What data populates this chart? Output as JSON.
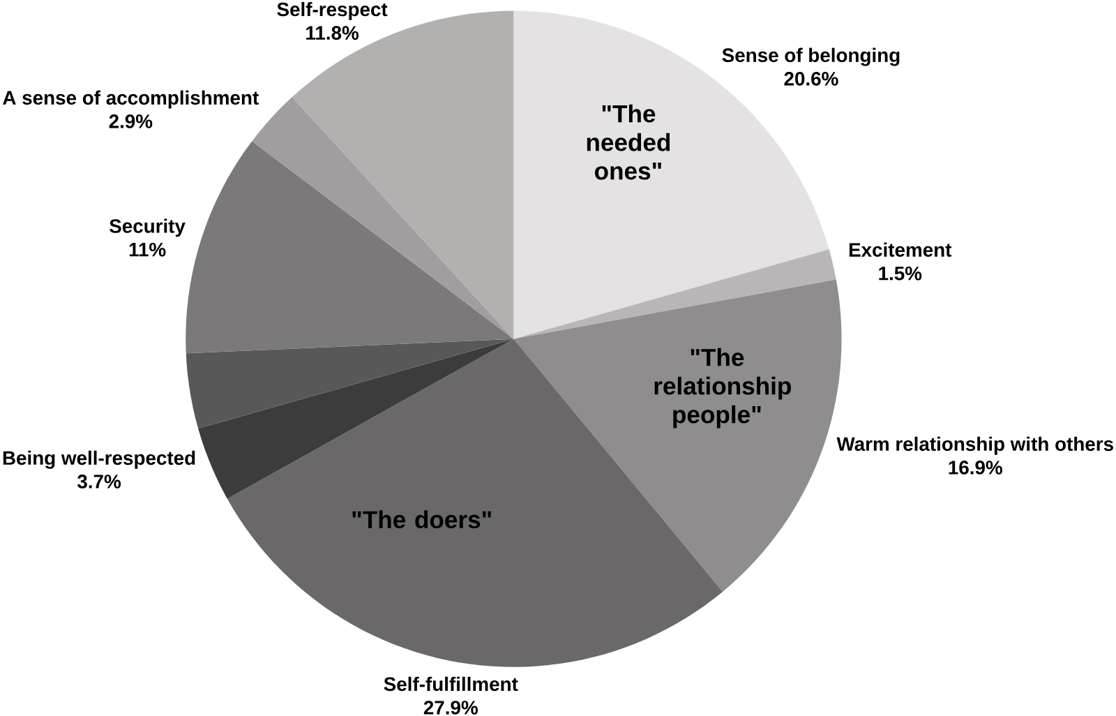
{
  "chart_data": {
    "type": "pie",
    "categories": [
      "Sense of belonging",
      "Excitement",
      "Warm relationship with others",
      "Self-fulfillment",
      "Being well-respected",
      null,
      "Security",
      "A sense of accomplishment",
      "Self-respect"
    ],
    "values": [
      20.6,
      1.5,
      16.9,
      27.9,
      3.7,
      3.7,
      11,
      2.9,
      11.8
    ],
    "value_labels": [
      "20.6%",
      "1.5%",
      "16.9%",
      "27.9%",
      "3.7%",
      null,
      "11%",
      "2.9%",
      "11.8%"
    ],
    "colors": [
      "#e4e2e2",
      "#b8b6b6",
      "#8f8d8d",
      "#6a6868",
      "#3d3c3c",
      "#595858",
      "#7b7979",
      "#a09e9e",
      "#b3b0b0"
    ],
    "annotations": [
      "\"The needed ones\"",
      "\"The relationship people\"",
      "\"The doers\""
    ],
    "data_labels": false
  }
}
